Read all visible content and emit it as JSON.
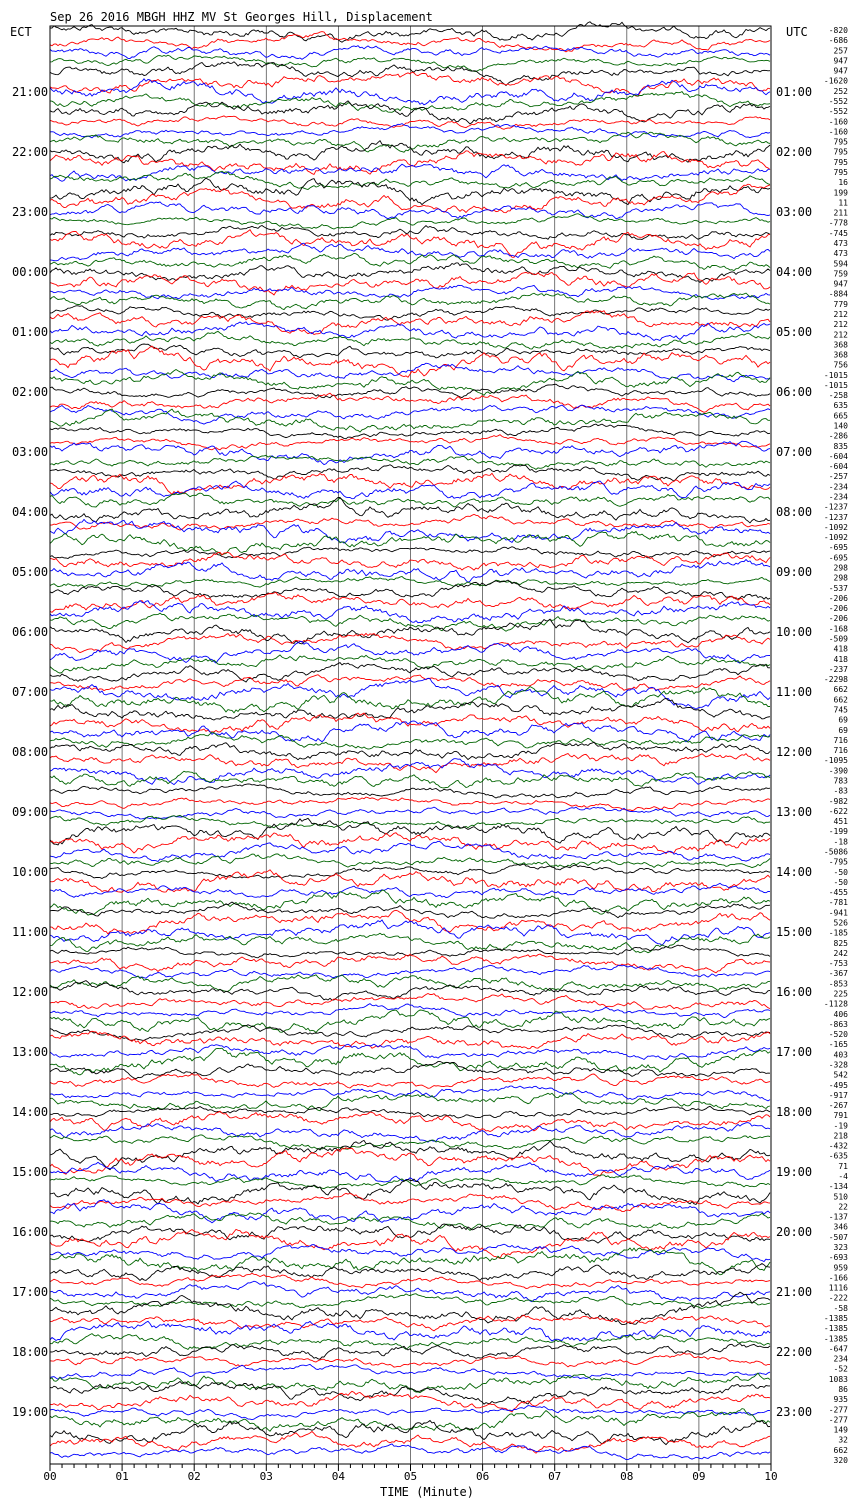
{
  "chart_data": {
    "type": "line",
    "title": "Sep 26 2016 MBGH HHZ MV St Georges Hill, Displacement",
    "left_label": "ECT",
    "right_label": "UTC",
    "xlabel": "TIME (Minute)",
    "x_ticks": [
      "00",
      "01",
      "02",
      "03",
      "04",
      "05",
      "06",
      "07",
      "08",
      "09",
      "10"
    ],
    "x_range": [
      0,
      10
    ],
    "left_hour_labels": [
      "21:00",
      "22:00",
      "23:00",
      "00:00",
      "01:00",
      "02:00",
      "03:00",
      "04:00",
      "05:00",
      "06:00",
      "07:00",
      "08:00",
      "09:00",
      "10:00",
      "11:00",
      "12:00",
      "13:00",
      "14:00",
      "15:00",
      "16:00",
      "17:00",
      "18:00",
      "19:00"
    ],
    "right_hour_labels": [
      "01:00",
      "02:00",
      "03:00",
      "04:00",
      "05:00",
      "06:00",
      "07:00",
      "08:00",
      "09:00",
      "10:00",
      "11:00",
      "12:00",
      "13:00",
      "14:00",
      "15:00",
      "16:00",
      "17:00",
      "18:00",
      "19:00",
      "20:00",
      "21:00",
      "22:00",
      "23:00"
    ],
    "trace_offsets": [
      "-820",
      "-686",
      "257",
      "947",
      "947",
      "-1620",
      "252",
      "-552",
      "-552",
      "-160",
      "-160",
      "795",
      "795",
      "795",
      "795",
      "16",
      "199",
      "11",
      "211",
      "-778",
      "-745",
      "473",
      "473",
      "594",
      "759",
      "947",
      "-884",
      "779",
      "212",
      "212",
      "212",
      "368",
      "368",
      "756",
      "-1015",
      "-1015",
      "-258",
      "635",
      "665",
      "140",
      "-286",
      "835",
      "-604",
      "-604",
      "-257",
      "-234",
      "-234",
      "-1237",
      "-1237",
      "-1092",
      "-1092",
      "-695",
      "-695",
      "298",
      "298",
      "-537",
      "-206",
      "-206",
      "-206",
      "-168",
      "-509",
      "418",
      "418",
      "-237",
      "-2298",
      "662",
      "662",
      "745",
      "69",
      "69",
      "716",
      "716",
      "-1095",
      "-390",
      "783",
      "-83",
      "-982",
      "-622",
      "451",
      "-199",
      "-18",
      "-5086",
      "-795",
      "-50",
      "-50",
      "-455",
      "-781",
      "-941",
      "526",
      "-185",
      "825",
      "242",
      "-753",
      "-367",
      "-853",
      "225",
      "-1128",
      "406",
      "-863",
      "-520",
      "-165",
      "403",
      "-328",
      "542",
      "-495",
      "-917",
      "-267",
      "791",
      "-19",
      "218",
      "-432",
      "-635",
      "71",
      "-4",
      "-134",
      "510",
      "22",
      "-137",
      "346",
      "-507",
      "323",
      "-693",
      "959",
      "-166",
      "1116",
      "-222",
      "-58",
      "-1385",
      "-1385",
      "-1385",
      "-647",
      "234",
      "-52",
      "1083",
      "86",
      "935",
      "-277",
      "-277",
      "149",
      "32",
      "662",
      "320"
    ],
    "trace_colors": [
      "#000000",
      "#ff0000",
      "#0000ff",
      "#006400"
    ],
    "traces_per_hour": 6,
    "grid": true
  }
}
